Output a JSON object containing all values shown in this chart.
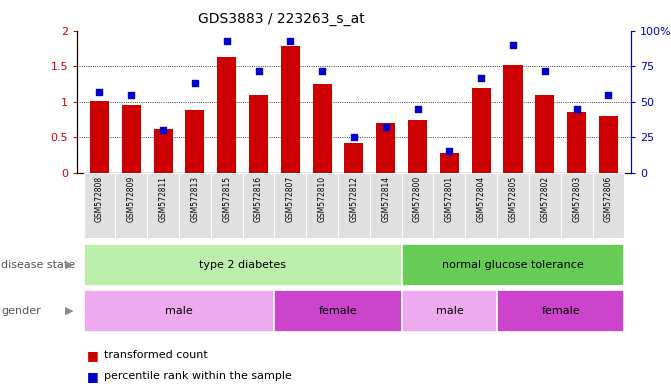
{
  "title": "GDS3883 / 223263_s_at",
  "samples": [
    "GSM572808",
    "GSM572809",
    "GSM572811",
    "GSM572813",
    "GSM572815",
    "GSM572816",
    "GSM572807",
    "GSM572810",
    "GSM572812",
    "GSM572814",
    "GSM572800",
    "GSM572801",
    "GSM572804",
    "GSM572805",
    "GSM572802",
    "GSM572803",
    "GSM572806"
  ],
  "transformed_count": [
    1.01,
    0.95,
    0.62,
    0.88,
    1.63,
    1.1,
    1.78,
    1.25,
    0.42,
    0.7,
    0.75,
    0.28,
    1.2,
    1.52,
    1.1,
    0.85,
    0.8
  ],
  "percentile_rank": [
    57,
    55,
    30,
    63,
    93,
    72,
    93,
    72,
    25,
    32,
    45,
    15,
    67,
    90,
    72,
    45,
    55
  ],
  "ylim_left": [
    0,
    2
  ],
  "ylim_right": [
    0,
    100
  ],
  "yticks_left": [
    0,
    0.5,
    1.0,
    1.5,
    2.0
  ],
  "ytick_labels_left": [
    "0",
    "0.5",
    "1",
    "1.5",
    "2"
  ],
  "yticks_right": [
    0,
    25,
    50,
    75,
    100
  ],
  "ytick_labels_right": [
    "0",
    "25",
    "50",
    "75",
    "100%"
  ],
  "bar_color": "#cc0000",
  "dot_color": "#0000cc",
  "disease_state_groups": [
    {
      "label": "type 2 diabetes",
      "start": 0,
      "end": 10,
      "color": "#bbeeaa"
    },
    {
      "label": "normal glucose tolerance",
      "start": 10,
      "end": 17,
      "color": "#66cc55"
    }
  ],
  "gender_groups": [
    {
      "label": "male",
      "start": 0,
      "end": 6,
      "color": "#eeaaee"
    },
    {
      "label": "female",
      "start": 6,
      "end": 10,
      "color": "#cc44cc"
    },
    {
      "label": "male",
      "start": 10,
      "end": 13,
      "color": "#eeaaee"
    },
    {
      "label": "female",
      "start": 13,
      "end": 17,
      "color": "#cc44cc"
    }
  ],
  "legend_items": [
    {
      "label": "transformed count",
      "color": "#cc0000"
    },
    {
      "label": "percentile rank within the sample",
      "color": "#0000cc"
    }
  ],
  "background_color": "#ffffff",
  "tick_label_color_left": "#cc0000",
  "tick_label_color_right": "#0000cc",
  "xtick_bg": "#e0e0e0"
}
